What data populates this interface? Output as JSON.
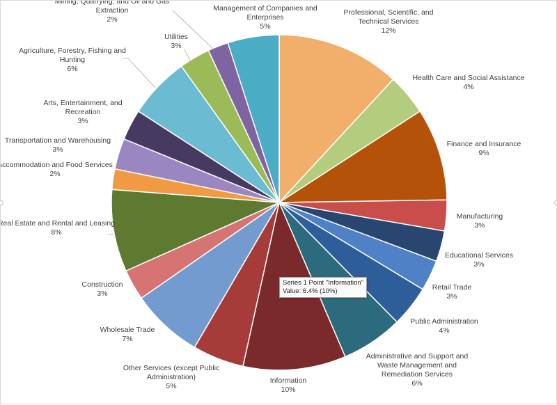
{
  "chart_data": {
    "type": "pie",
    "title": "",
    "start_angle_deg": 0,
    "direction": "clockwise",
    "slices": [
      {
        "name": "Professional, Scientific, and\nTechnical Services",
        "value": 12,
        "label": "12%",
        "color": "#F2AE6B"
      },
      {
        "name": "Health Care and Social Assistance",
        "value": 4,
        "label": "4%",
        "color": "#B3CC7E"
      },
      {
        "name": "Finance and Insurance",
        "value": 9,
        "label": "9%",
        "color": "#B5520A"
      },
      {
        "name": "Manufacturing",
        "value": 3,
        "label": "3%",
        "color": "#C94E4B"
      },
      {
        "name": "Educational Services",
        "value": 3,
        "label": "3%",
        "color": "#284670"
      },
      {
        "name": "Retail Trade",
        "value": 3,
        "label": "3%",
        "color": "#4F81C7"
      },
      {
        "name": "Public Administration",
        "value": 4,
        "label": "4%",
        "color": "#2E5E99"
      },
      {
        "name": "Administrative and Support and\nWaste Management and\nRemediation Services",
        "value": 6,
        "label": "6%",
        "color": "#2C6A7D"
      },
      {
        "name": "Information",
        "value": 10,
        "label": "10%",
        "color": "#7A2A2A"
      },
      {
        "name": "Other Services (except Public\nAdministration)",
        "value": 5,
        "label": "5%",
        "color": "#A63C3A"
      },
      {
        "name": "Wholesale Trade",
        "value": 7,
        "label": "7%",
        "color": "#739BD0"
      },
      {
        "name": "Construction",
        "value": 3,
        "label": "3%",
        "color": "#D67373"
      },
      {
        "name": "Real Estate and Rental and Leasing",
        "value": 8,
        "label": "8%",
        "color": "#5E7A30"
      },
      {
        "name": "Accommodation and Food Services",
        "value": 2,
        "label": "2%",
        "color": "#F09A44"
      },
      {
        "name": "Transportation and Warehousing",
        "value": 3,
        "label": "3%",
        "color": "#9A86C0"
      },
      {
        "name": "Arts, Entertainment, and\nRecreation",
        "value": 3,
        "label": "3%",
        "color": "#473A62"
      },
      {
        "name": "Agriculture, Forestry, Fishing and\nHunting",
        "value": 6,
        "label": "6%",
        "color": "#6BBCD2"
      },
      {
        "name": "Utilities",
        "value": 3,
        "label": "3%",
        "color": "#9BBB59"
      },
      {
        "name": "Mining, Quarrying, and Oil and Gas\nExtraction",
        "value": 2,
        "label": "2%",
        "color": "#8064A2"
      },
      {
        "name": "Management of Companies and\nEnterprises",
        "value": 5,
        "label": "5%",
        "color": "#4BACC6"
      }
    ]
  },
  "tooltip": {
    "line1": "Series 1 Point \"Information\"",
    "line2": "Value: 6.4% (10%)"
  }
}
